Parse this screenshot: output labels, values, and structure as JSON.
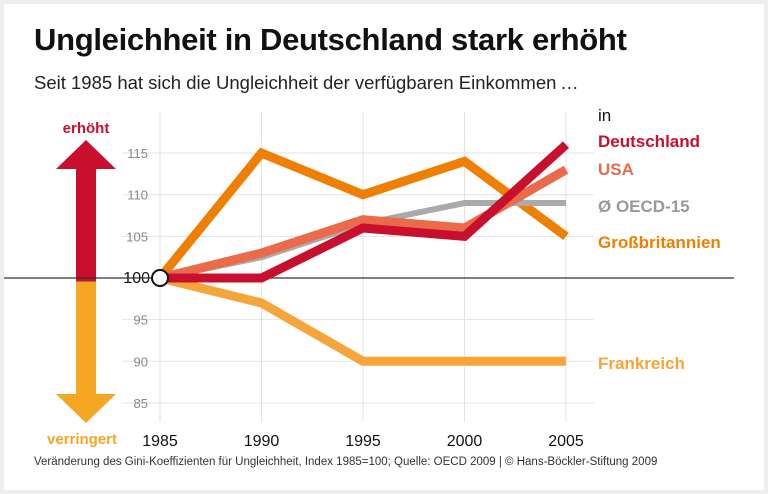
{
  "title": "Ungleichheit in Deutschland stark erhöht",
  "subtitle": "Seit 1985 hat sich die Ungleichheit der verfügbaren Einkommen …",
  "footer": "Veränderung des Gini-Koeffizienten für Ungleichheit, Index 1985=100; Quelle: OECD 2009 | © Hans-Böckler-Stiftung 2009",
  "arrow": {
    "up_label": "erhöht",
    "down_label": "verringert",
    "up_color": "#c8102e",
    "down_color": "#f5a623"
  },
  "legend_intro": "in",
  "chart_data": {
    "type": "line",
    "x": [
      1985,
      1990,
      1995,
      2000,
      2005
    ],
    "xticks": [
      "1985",
      "1990",
      "1995",
      "2000",
      "2005"
    ],
    "ylim": [
      83,
      118
    ],
    "yticks": [
      "85",
      "90",
      "95",
      "100",
      "105",
      "110",
      "115"
    ],
    "baseline": 100,
    "grid": true,
    "legend": "right",
    "series": [
      {
        "name": "Großbritannien",
        "color": "#ee7f00",
        "values": [
          100,
          115,
          110,
          114,
          105
        ]
      },
      {
        "name": "Ø OECD-15",
        "color": "#aaaaaa",
        "values": [
          100,
          102.5,
          106.5,
          109,
          109
        ]
      },
      {
        "name": "USA",
        "color": "#ea6a4a",
        "values": [
          100,
          103,
          107,
          106,
          113
        ]
      },
      {
        "name": "Frankreich",
        "color": "#f5a53a",
        "values": [
          100,
          97,
          90,
          90,
          90
        ]
      },
      {
        "name": "Deutschland",
        "color": "#c8102e",
        "values": [
          100,
          100,
          106,
          105,
          116
        ]
      }
    ]
  }
}
